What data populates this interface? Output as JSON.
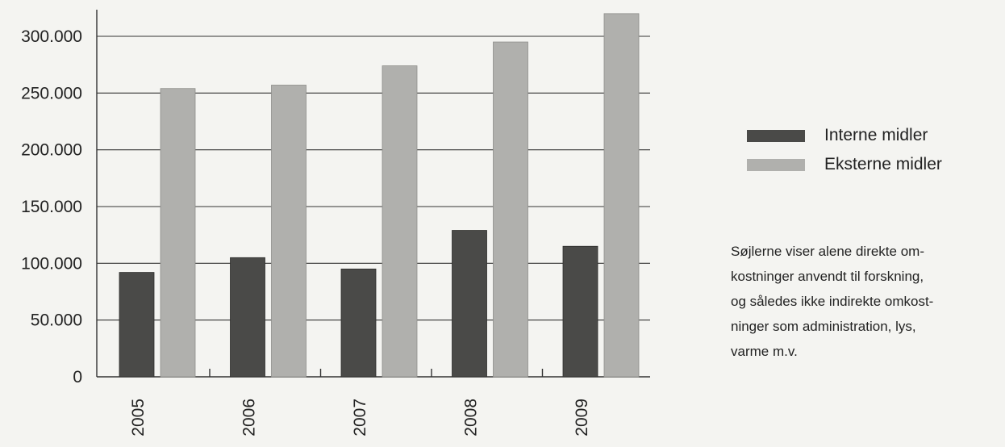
{
  "chart_data": {
    "type": "bar",
    "categories": [
      "2005",
      "2006",
      "2007",
      "2008",
      "2009"
    ],
    "series": [
      {
        "name": "Interne midler",
        "values": [
          92000,
          105000,
          95000,
          129000,
          115000
        ]
      },
      {
        "name": "Eksterne midler",
        "values": [
          254000,
          257000,
          274000,
          295000,
          320000
        ]
      }
    ],
    "yticks": [
      "0",
      "50.000",
      "100.000",
      "150.000",
      "200.000",
      "250.000",
      "300.000"
    ],
    "ylim": [
      0,
      325000
    ],
    "grid": true,
    "legend_position": "right"
  },
  "colors": {
    "internal": "#4a4a48",
    "external": "#b0b0ad",
    "grid": "#333333"
  },
  "note": "Søjlerne viser alene direkte om-\nkostninger anvendt til forskning,\nog således ikke indirekte omkost-\nninger som administration, lys,\nvarme m.v."
}
